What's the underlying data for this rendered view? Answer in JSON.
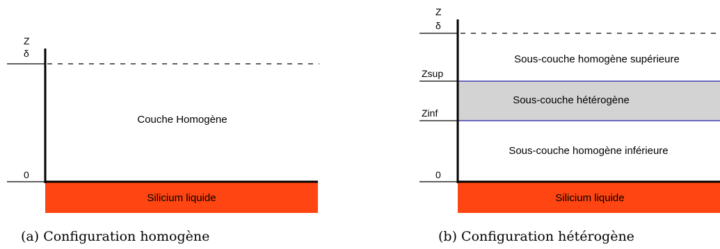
{
  "panel_a": {
    "axis_z": "Z",
    "axis_delta": "δ",
    "axis_zero": "0",
    "layer_label": "Couche Homogène",
    "liquid_label": "Silicium liquide",
    "caption": "(a) Configuration homogène"
  },
  "panel_b": {
    "axis_z": "Z",
    "axis_delta": "δ",
    "axis_zsup": "Zsup",
    "axis_zinf": "Zinf",
    "axis_zero": "0",
    "upper_label": "Sous-couche homogène supérieure",
    "hetero_label": "Sous-couche hétérogène",
    "lower_label": "Sous-couche homogène inférieure",
    "liquid_label": "Silicium liquide",
    "caption": "(b) Configuration hétérogène"
  },
  "colors": {
    "liquid_fill": "#ff4511",
    "hetero_fill": "#d3d3d3",
    "hetero_border": "#1c1ca8",
    "axis": "#000000"
  }
}
